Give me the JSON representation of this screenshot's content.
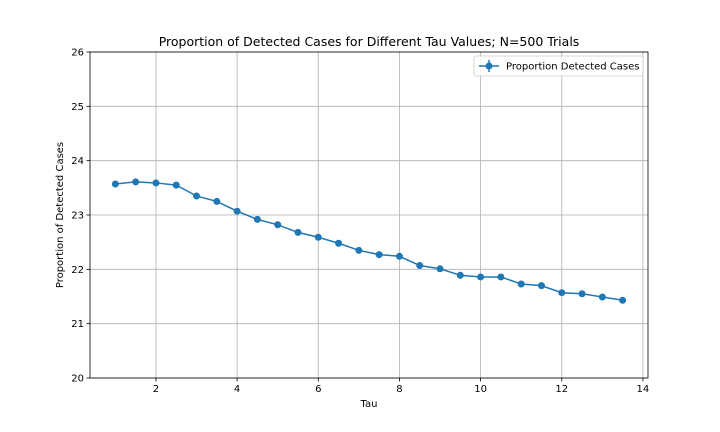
{
  "chart_data": {
    "type": "line",
    "title": "Proportion of Detected Cases for Different Tau Values; N=500 Trials",
    "xlabel": "Tau",
    "ylabel": "Proportion of Detected Cases",
    "xlim": [
      0.375,
      14.125
    ],
    "ylim": [
      20,
      26
    ],
    "xticks": [
      2,
      4,
      6,
      8,
      10,
      12,
      14
    ],
    "yticks": [
      20,
      21,
      22,
      23,
      24,
      25,
      26
    ],
    "grid": true,
    "legend_position": "top-right",
    "series": [
      {
        "name": "Proportion Detected Cases",
        "color": "#1f77b4",
        "marker": "circle",
        "error_bars": true,
        "x": [
          1.0,
          1.5,
          2.0,
          2.5,
          3.0,
          3.5,
          4.0,
          4.5,
          5.0,
          5.5,
          6.0,
          6.5,
          7.0,
          7.5,
          8.0,
          8.5,
          9.0,
          9.5,
          10.0,
          10.5,
          11.0,
          11.5,
          12.0,
          12.5,
          13.0,
          13.5
        ],
        "y": [
          23.57,
          23.61,
          23.59,
          23.55,
          23.35,
          23.25,
          23.07,
          22.92,
          22.82,
          22.68,
          22.59,
          22.48,
          22.35,
          22.27,
          22.24,
          22.07,
          22.01,
          21.89,
          21.86,
          21.86,
          21.73,
          21.7,
          21.57,
          21.55,
          21.49,
          21.43
        ]
      }
    ]
  }
}
